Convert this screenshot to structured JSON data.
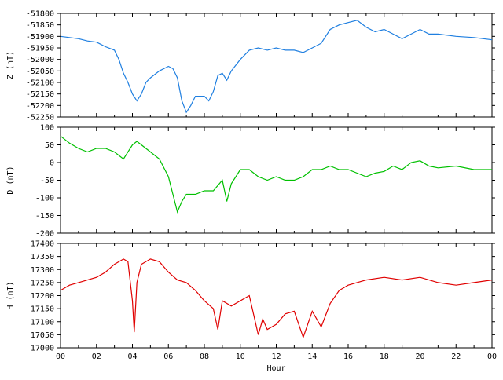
{
  "chart_data": [
    {
      "type": "line",
      "ylabel": "Z (nT)",
      "ylim": [
        -52250,
        -51800
      ],
      "yticks": [
        -52250,
        -52200,
        -52150,
        -52100,
        -52050,
        -52000,
        -51950,
        -51900,
        -51850,
        -51800
      ],
      "series": [
        {
          "color": "#1f7fe0",
          "x": [
            0,
            0.5,
            1,
            1.5,
            2,
            2.5,
            3,
            3.25,
            3.5,
            3.75,
            4,
            4.25,
            4.5,
            4.75,
            5,
            5.5,
            6,
            6.25,
            6.5,
            6.75,
            7,
            7.25,
            7.5,
            8,
            8.25,
            8.5,
            8.75,
            9,
            9.25,
            9.5,
            10,
            10.5,
            11,
            11.5,
            12,
            12.5,
            13,
            13.5,
            14,
            14.5,
            15,
            15.5,
            16,
            16.5,
            17,
            17.5,
            18,
            18.5,
            19,
            19.5,
            20,
            20.5,
            21,
            22,
            23,
            24
          ],
          "values": [
            -51900,
            -51905,
            -51910,
            -51920,
            -51925,
            -51945,
            -51960,
            -52000,
            -52060,
            -52100,
            -52150,
            -52180,
            -52150,
            -52100,
            -52080,
            -52050,
            -52030,
            -52040,
            -52080,
            -52180,
            -52230,
            -52200,
            -52160,
            -52160,
            -52180,
            -52140,
            -52070,
            -52060,
            -52090,
            -52050,
            -52000,
            -51960,
            -51950,
            -51960,
            -51950,
            -51960,
            -51960,
            -51970,
            -51950,
            -51930,
            -51870,
            -51850,
            -51840,
            -51830,
            -51860,
            -51880,
            -51870,
            -51890,
            -51910,
            -51890,
            -51870,
            -51890,
            -51890,
            -51900,
            -51905,
            -51915
          ]
        }
      ]
    },
    {
      "type": "line",
      "ylabel": "D (nT)",
      "ylim": [
        -200,
        100
      ],
      "yticks": [
        -200,
        -150,
        -100,
        -50,
        0,
        50,
        100
      ],
      "series": [
        {
          "color": "#00c000",
          "x": [
            0,
            0.5,
            1,
            1.5,
            2,
            2.5,
            3,
            3.5,
            4,
            4.25,
            4.5,
            5,
            5.5,
            6,
            6.25,
            6.5,
            6.75,
            7,
            7.5,
            8,
            8.5,
            9,
            9.25,
            9.5,
            10,
            10.5,
            11,
            11.5,
            12,
            12.5,
            13,
            13.5,
            14,
            14.5,
            15,
            15.5,
            16,
            16.5,
            17,
            17.5,
            18,
            18.5,
            19,
            19.5,
            20,
            20.5,
            21,
            22,
            23,
            24
          ],
          "values": [
            75,
            55,
            40,
            30,
            40,
            40,
            30,
            10,
            50,
            60,
            50,
            30,
            10,
            -40,
            -90,
            -140,
            -110,
            -90,
            -90,
            -80,
            -80,
            -50,
            -110,
            -60,
            -20,
            -20,
            -40,
            -50,
            -40,
            -50,
            -50,
            -40,
            -20,
            -20,
            -10,
            -20,
            -20,
            -30,
            -40,
            -30,
            -25,
            -10,
            -20,
            0,
            5,
            -10,
            -15,
            -10,
            -20,
            -20
          ]
        }
      ]
    },
    {
      "type": "line",
      "ylabel": "H (nT)",
      "xlabel": "Hour",
      "ylim": [
        17000,
        17400
      ],
      "yticks": [
        17000,
        17050,
        17100,
        17150,
        17200,
        17250,
        17300,
        17350,
        17400
      ],
      "xlim": [
        0,
        24
      ],
      "xticks": [
        {
          "value": 0,
          "label": "00"
        },
        {
          "value": 2,
          "label": "02"
        },
        {
          "value": 4,
          "label": "04"
        },
        {
          "value": 6,
          "label": "06"
        },
        {
          "value": 8,
          "label": "08"
        },
        10,
        12,
        14,
        16,
        18,
        20,
        22,
        {
          "value": 24,
          "label": "00"
        }
      ],
      "series": [
        {
          "color": "#e00000",
          "x": [
            0,
            0.5,
            1,
            1.5,
            2,
            2.5,
            3,
            3.5,
            3.75,
            4,
            4.1,
            4.25,
            4.5,
            5,
            5.5,
            6,
            6.5,
            7,
            7.5,
            8,
            8.5,
            8.75,
            9,
            9.5,
            10,
            10.5,
            11,
            11.25,
            11.5,
            12,
            12.5,
            13,
            13.5,
            14,
            14.5,
            15,
            15.5,
            16,
            17,
            18,
            19,
            20,
            21,
            22,
            23,
            24
          ],
          "values": [
            17220,
            17240,
            17250,
            17260,
            17270,
            17290,
            17320,
            17340,
            17330,
            17180,
            17060,
            17250,
            17320,
            17340,
            17330,
            17290,
            17260,
            17250,
            17220,
            17180,
            17150,
            17070,
            17180,
            17160,
            17180,
            17200,
            17050,
            17110,
            17070,
            17090,
            17130,
            17140,
            17040,
            17140,
            17080,
            17170,
            17220,
            17240,
            17260,
            17270,
            17260,
            17270,
            17250,
            17240,
            17250,
            17260
          ]
        }
      ]
    }
  ]
}
